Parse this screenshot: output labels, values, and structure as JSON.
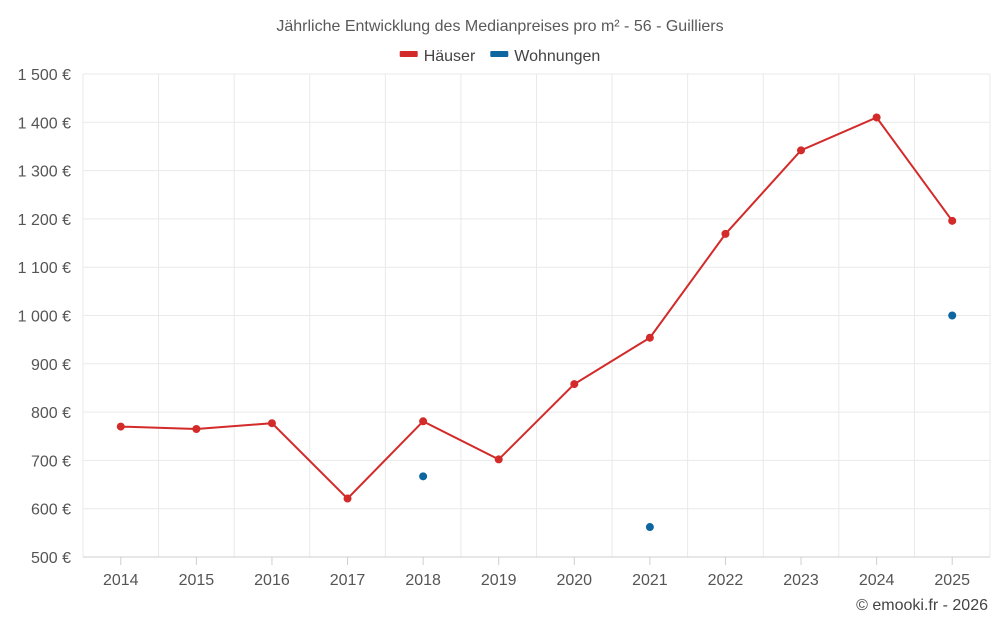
{
  "chart_data": {
    "type": "line",
    "title": "Jährliche Entwicklung des Medianpreises pro m² - 56 - Guilliers",
    "categories": [
      "2014",
      "2015",
      "2016",
      "2017",
      "2018",
      "2019",
      "2020",
      "2021",
      "2022",
      "2023",
      "2024",
      "2025"
    ],
    "series": [
      {
        "name": "Häuser",
        "color": "#d32a2a",
        "values": [
          770,
          765,
          777,
          621,
          781,
          702,
          858,
          954,
          1169,
          1342,
          1410,
          1196
        ]
      },
      {
        "name": "Wohnungen",
        "color": "#0e66a0",
        "values": [
          null,
          null,
          null,
          null,
          667,
          null,
          null,
          562,
          null,
          null,
          null,
          1000
        ]
      }
    ],
    "ylim": [
      500,
      1500
    ],
    "yticks": [
      500,
      600,
      700,
      800,
      900,
      1000,
      1100,
      1200,
      1300,
      1400,
      1500
    ],
    "ytick_labels": [
      "500 €",
      "600 €",
      "700 €",
      "800 €",
      "900 €",
      "1 000 €",
      "1 100 €",
      "1 200 €",
      "1 300 €",
      "1 400 €",
      "1 500 €"
    ],
    "xlabel": "",
    "ylabel": "",
    "grid": true,
    "legend": "top-center"
  },
  "credit": "© emooki.fr - 2026"
}
